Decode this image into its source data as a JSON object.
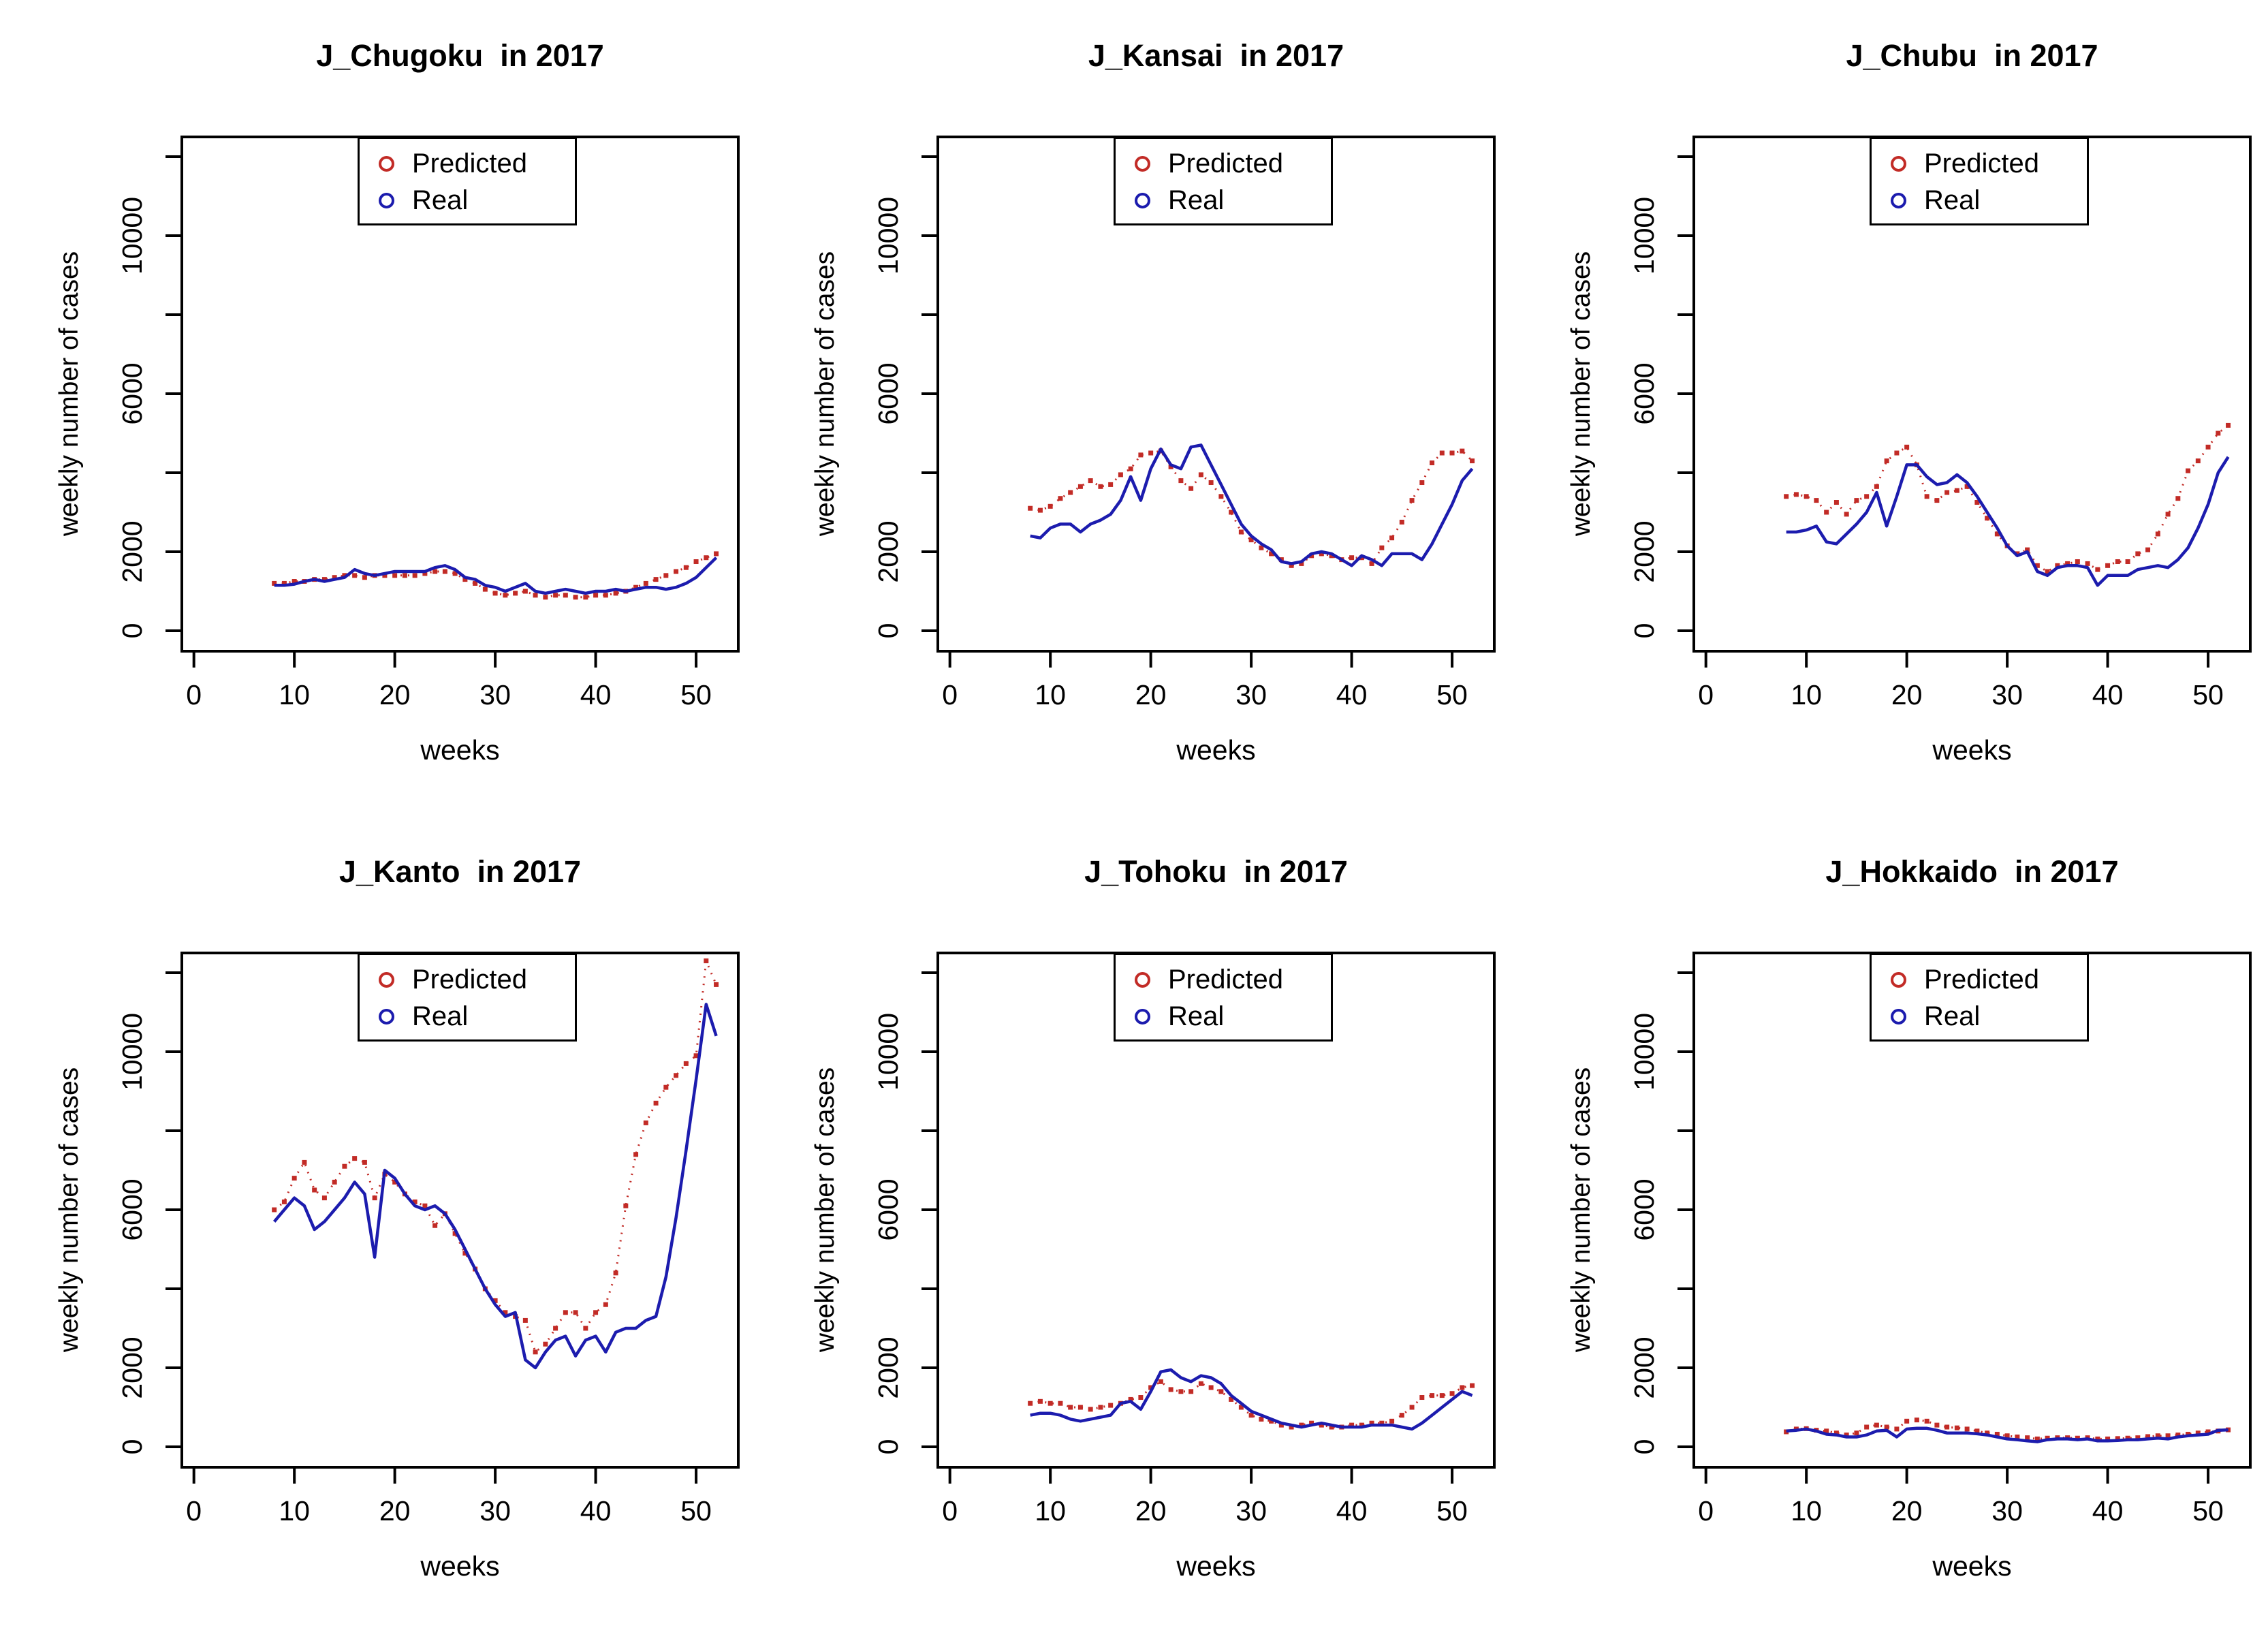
{
  "page": {
    "background": "#ffffff",
    "layout": "2x3 grid of R base plots"
  },
  "colors": {
    "predicted": "#c22b26",
    "real": "#1c1cae",
    "axis": "#000000",
    "plot_bg": "#ffffff"
  },
  "legend": {
    "predicted_label": "Predicted",
    "real_label": "Real"
  },
  "chart_data": [
    {
      "type": "line",
      "title": "J_Chugoku  in 2017",
      "xlabel": "weeks",
      "ylabel": "weekly number of cases",
      "legend_position": "top",
      "grid": false,
      "xlim": [
        -1.2,
        54.2
      ],
      "ylim": [
        -517,
        12500
      ],
      "xticks": [
        0,
        10,
        20,
        30,
        40,
        50
      ],
      "yticks": [
        0,
        2000,
        4000,
        6000,
        8000,
        10000,
        12000
      ],
      "ytick_labels": [
        "0",
        "2000",
        "",
        "6000",
        "",
        "10000",
        ""
      ],
      "x": [
        8,
        9,
        10,
        11,
        12,
        13,
        14,
        15,
        16,
        17,
        18,
        19,
        20,
        21,
        22,
        23,
        24,
        25,
        26,
        27,
        28,
        29,
        30,
        31,
        32,
        33,
        34,
        35,
        36,
        37,
        38,
        39,
        40,
        41,
        42,
        43,
        44,
        45,
        46,
        47,
        48,
        49,
        50,
        51,
        52
      ],
      "series": [
        {
          "name": "Predicted",
          "color": "#c22b26",
          "style": "dotted-points",
          "values": [
            1200,
            1200,
            1250,
            1250,
            1300,
            1300,
            1350,
            1400,
            1400,
            1350,
            1400,
            1400,
            1400,
            1400,
            1400,
            1450,
            1500,
            1500,
            1450,
            1300,
            1200,
            1050,
            950,
            900,
            950,
            1000,
            900,
            850,
            900,
            900,
            850,
            850,
            900,
            900,
            950,
            1000,
            1100,
            1200,
            1300,
            1400,
            1500,
            1600,
            1750,
            1850,
            1950
          ]
        },
        {
          "name": "Real",
          "color": "#1c1cae",
          "style": "solid-line",
          "values": [
            1150,
            1150,
            1180,
            1250,
            1300,
            1250,
            1300,
            1350,
            1550,
            1450,
            1400,
            1450,
            1500,
            1500,
            1500,
            1500,
            1600,
            1650,
            1550,
            1350,
            1300,
            1150,
            1100,
            1000,
            1100,
            1200,
            1000,
            950,
            1000,
            1050,
            1000,
            950,
            1000,
            1000,
            1050,
            1000,
            1050,
            1100,
            1100,
            1050,
            1100,
            1200,
            1350,
            1600,
            1850
          ]
        }
      ]
    },
    {
      "type": "line",
      "title": "J_Kansai  in 2017",
      "xlabel": "weeks",
      "ylabel": "weekly number of cases",
      "legend_position": "top",
      "grid": false,
      "xlim": [
        -1.2,
        54.2
      ],
      "ylim": [
        -517,
        12500
      ],
      "xticks": [
        0,
        10,
        20,
        30,
        40,
        50
      ],
      "yticks": [
        0,
        2000,
        4000,
        6000,
        8000,
        10000,
        12000
      ],
      "ytick_labels": [
        "0",
        "2000",
        "",
        "6000",
        "",
        "10000",
        ""
      ],
      "x": [
        8,
        9,
        10,
        11,
        12,
        13,
        14,
        15,
        16,
        17,
        18,
        19,
        20,
        21,
        22,
        23,
        24,
        25,
        26,
        27,
        28,
        29,
        30,
        31,
        32,
        33,
        34,
        35,
        36,
        37,
        38,
        39,
        40,
        41,
        42,
        43,
        44,
        45,
        46,
        47,
        48,
        49,
        50,
        51,
        52
      ],
      "series": [
        {
          "name": "Predicted",
          "color": "#c22b26",
          "style": "dotted-points",
          "values": [
            3100,
            3050,
            3150,
            3350,
            3500,
            3650,
            3800,
            3650,
            3700,
            3950,
            4100,
            4450,
            4500,
            4550,
            4150,
            3800,
            3600,
            3950,
            3750,
            3400,
            3000,
            2500,
            2300,
            2100,
            1950,
            1800,
            1650,
            1700,
            1900,
            1950,
            1900,
            1800,
            1850,
            1850,
            1700,
            2100,
            2350,
            2750,
            3300,
            3750,
            4250,
            4500,
            4500,
            4550,
            4300
          ]
        },
        {
          "name": "Real",
          "color": "#1c1cae",
          "style": "solid-line",
          "values": [
            2400,
            2350,
            2600,
            2700,
            2700,
            2500,
            2700,
            2800,
            2950,
            3300,
            3900,
            3300,
            4100,
            4600,
            4200,
            4100,
            4650,
            4700,
            4200,
            3700,
            3200,
            2700,
            2400,
            2200,
            2050,
            1750,
            1700,
            1750,
            1950,
            2000,
            1950,
            1800,
            1650,
            1900,
            1800,
            1650,
            1950,
            1950,
            1950,
            1800,
            2200,
            2700,
            3200,
            3800,
            4100
          ]
        }
      ]
    },
    {
      "type": "line",
      "title": "J_Chubu  in 2017",
      "xlabel": "weeks",
      "ylabel": "weekly number of cases",
      "legend_position": "top",
      "grid": false,
      "xlim": [
        -1.2,
        54.2
      ],
      "ylim": [
        -517,
        12500
      ],
      "xticks": [
        0,
        10,
        20,
        30,
        40,
        50
      ],
      "yticks": [
        0,
        2000,
        4000,
        6000,
        8000,
        10000,
        12000
      ],
      "ytick_labels": [
        "0",
        "2000",
        "",
        "6000",
        "",
        "10000",
        ""
      ],
      "x": [
        8,
        9,
        10,
        11,
        12,
        13,
        14,
        15,
        16,
        17,
        18,
        19,
        20,
        21,
        22,
        23,
        24,
        25,
        26,
        27,
        28,
        29,
        30,
        31,
        32,
        33,
        34,
        35,
        36,
        37,
        38,
        39,
        40,
        41,
        42,
        43,
        44,
        45,
        46,
        47,
        48,
        49,
        50,
        51,
        52
      ],
      "series": [
        {
          "name": "Predicted",
          "color": "#c22b26",
          "style": "dotted-points",
          "values": [
            3400,
            3450,
            3400,
            3300,
            3000,
            3250,
            2950,
            3300,
            3400,
            3650,
            4300,
            4500,
            4650,
            4200,
            3400,
            3300,
            3500,
            3550,
            3650,
            3250,
            2850,
            2450,
            2150,
            1950,
            2050,
            1650,
            1500,
            1650,
            1700,
            1750,
            1700,
            1550,
            1650,
            1750,
            1750,
            1950,
            2050,
            2450,
            2950,
            3350,
            4050,
            4300,
            4650,
            5000,
            5200
          ]
        },
        {
          "name": "Real",
          "color": "#1c1cae",
          "style": "solid-line",
          "values": [
            2500,
            2500,
            2550,
            2650,
            2250,
            2200,
            2450,
            2700,
            3000,
            3500,
            2650,
            3400,
            4200,
            4200,
            3900,
            3700,
            3750,
            3950,
            3750,
            3400,
            3000,
            2600,
            2150,
            1900,
            2000,
            1500,
            1400,
            1600,
            1650,
            1650,
            1600,
            1150,
            1400,
            1400,
            1400,
            1550,
            1600,
            1650,
            1600,
            1800,
            2100,
            2600,
            3200,
            4000,
            4400
          ]
        }
      ]
    },
    {
      "type": "line",
      "title": "J_Kanto  in 2017",
      "xlabel": "weeks",
      "ylabel": "weekly number of cases",
      "legend_position": "top",
      "grid": false,
      "xlim": [
        -1.2,
        54.2
      ],
      "ylim": [
        -517,
        12500
      ],
      "xticks": [
        0,
        10,
        20,
        30,
        40,
        50
      ],
      "yticks": [
        0,
        2000,
        4000,
        6000,
        8000,
        10000,
        12000
      ],
      "ytick_labels": [
        "0",
        "2000",
        "",
        "6000",
        "",
        "10000",
        ""
      ],
      "x": [
        8,
        9,
        10,
        11,
        12,
        13,
        14,
        15,
        16,
        17,
        18,
        19,
        20,
        21,
        22,
        23,
        24,
        25,
        26,
        27,
        28,
        29,
        30,
        31,
        32,
        33,
        34,
        35,
        36,
        37,
        38,
        39,
        40,
        41,
        42,
        43,
        44,
        45,
        46,
        47,
        48,
        49,
        50,
        51,
        52
      ],
      "series": [
        {
          "name": "Predicted",
          "color": "#c22b26",
          "style": "dotted-points",
          "values": [
            6000,
            6200,
            6800,
            7200,
            6500,
            6300,
            6700,
            7100,
            7300,
            7200,
            6300,
            6900,
            6700,
            6400,
            6200,
            6100,
            5600,
            5900,
            5400,
            4900,
            4500,
            4000,
            3700,
            3400,
            3300,
            3200,
            2400,
            2600,
            3000,
            3400,
            3400,
            3000,
            3400,
            3600,
            4400,
            6100,
            7400,
            8200,
            8700,
            9100,
            9400,
            9700,
            9900,
            12300,
            11700
          ]
        },
        {
          "name": "Real",
          "color": "#1c1cae",
          "style": "solid-line",
          "values": [
            5700,
            6000,
            6300,
            6100,
            5500,
            5700,
            6000,
            6300,
            6700,
            6400,
            4800,
            7000,
            6800,
            6400,
            6100,
            6000,
            6100,
            5900,
            5500,
            5000,
            4500,
            4000,
            3600,
            3300,
            3400,
            2200,
            2000,
            2400,
            2700,
            2800,
            2300,
            2700,
            2800,
            2400,
            2900,
            3000,
            3000,
            3200,
            3300,
            4300,
            5800,
            7500,
            9300,
            11200,
            10400
          ]
        }
      ]
    },
    {
      "type": "line",
      "title": "J_Tohoku  in 2017",
      "xlabel": "weeks",
      "ylabel": "weekly number of cases",
      "legend_position": "top",
      "grid": false,
      "xlim": [
        -1.2,
        54.2
      ],
      "ylim": [
        -517,
        12500
      ],
      "xticks": [
        0,
        10,
        20,
        30,
        40,
        50
      ],
      "yticks": [
        0,
        2000,
        4000,
        6000,
        8000,
        10000,
        12000
      ],
      "ytick_labels": [
        "0",
        "2000",
        "",
        "6000",
        "",
        "10000",
        ""
      ],
      "x": [
        8,
        9,
        10,
        11,
        12,
        13,
        14,
        15,
        16,
        17,
        18,
        19,
        20,
        21,
        22,
        23,
        24,
        25,
        26,
        27,
        28,
        29,
        30,
        31,
        32,
        33,
        34,
        35,
        36,
        37,
        38,
        39,
        40,
        41,
        42,
        43,
        44,
        45,
        46,
        47,
        48,
        49,
        50,
        51,
        52
      ],
      "series": [
        {
          "name": "Predicted",
          "color": "#c22b26",
          "style": "dotted-points",
          "values": [
            1100,
            1150,
            1100,
            1100,
            1000,
            1000,
            950,
            1000,
            1050,
            1100,
            1200,
            1250,
            1500,
            1650,
            1450,
            1400,
            1400,
            1600,
            1500,
            1400,
            1200,
            1000,
            800,
            700,
            650,
            550,
            500,
            550,
            600,
            550,
            500,
            500,
            550,
            550,
            600,
            600,
            650,
            800,
            1000,
            1250,
            1300,
            1300,
            1350,
            1500,
            1550
          ]
        },
        {
          "name": "Real",
          "color": "#1c1cae",
          "style": "solid-line",
          "values": [
            800,
            850,
            850,
            800,
            700,
            650,
            700,
            750,
            800,
            1100,
            1150,
            950,
            1400,
            1900,
            1950,
            1750,
            1650,
            1800,
            1750,
            1600,
            1300,
            1100,
            900,
            800,
            700,
            600,
            550,
            500,
            550,
            600,
            550,
            500,
            500,
            500,
            550,
            550,
            550,
            500,
            450,
            600,
            800,
            1000,
            1200,
            1400,
            1300
          ]
        }
      ]
    },
    {
      "type": "line",
      "title": "J_Hokkaido  in 2017",
      "xlabel": "weeks",
      "ylabel": "weekly number of cases",
      "legend_position": "top",
      "grid": false,
      "xlim": [
        -1.2,
        54.2
      ],
      "ylim": [
        -517,
        12500
      ],
      "xticks": [
        0,
        10,
        20,
        30,
        40,
        50
      ],
      "yticks": [
        0,
        2000,
        4000,
        6000,
        8000,
        10000,
        12000
      ],
      "ytick_labels": [
        "0",
        "2000",
        "",
        "6000",
        "",
        "10000",
        ""
      ],
      "x": [
        8,
        9,
        10,
        11,
        12,
        13,
        14,
        15,
        16,
        17,
        18,
        19,
        20,
        21,
        22,
        23,
        24,
        25,
        26,
        27,
        28,
        29,
        30,
        31,
        32,
        33,
        34,
        35,
        36,
        37,
        38,
        39,
        40,
        41,
        42,
        43,
        44,
        45,
        46,
        47,
        48,
        49,
        50,
        51,
        52
      ],
      "series": [
        {
          "name": "Predicted",
          "color": "#c22b26",
          "style": "dotted-points",
          "values": [
            380,
            450,
            460,
            420,
            400,
            350,
            300,
            350,
            500,
            550,
            500,
            450,
            650,
            680,
            650,
            550,
            500,
            480,
            450,
            400,
            350,
            320,
            280,
            250,
            230,
            200,
            220,
            230,
            230,
            220,
            230,
            200,
            200,
            210,
            220,
            230,
            260,
            280,
            280,
            300,
            320,
            350,
            380,
            400,
            430
          ]
        },
        {
          "name": "Real",
          "color": "#1c1cae",
          "style": "solid-line",
          "values": [
            400,
            420,
            450,
            400,
            320,
            300,
            250,
            250,
            300,
            400,
            420,
            250,
            450,
            470,
            470,
            420,
            350,
            350,
            350,
            330,
            300,
            250,
            200,
            180,
            150,
            130,
            180,
            200,
            200,
            180,
            200,
            150,
            150,
            160,
            180,
            180,
            200,
            220,
            200,
            250,
            280,
            300,
            320,
            420,
            430
          ]
        }
      ]
    }
  ]
}
